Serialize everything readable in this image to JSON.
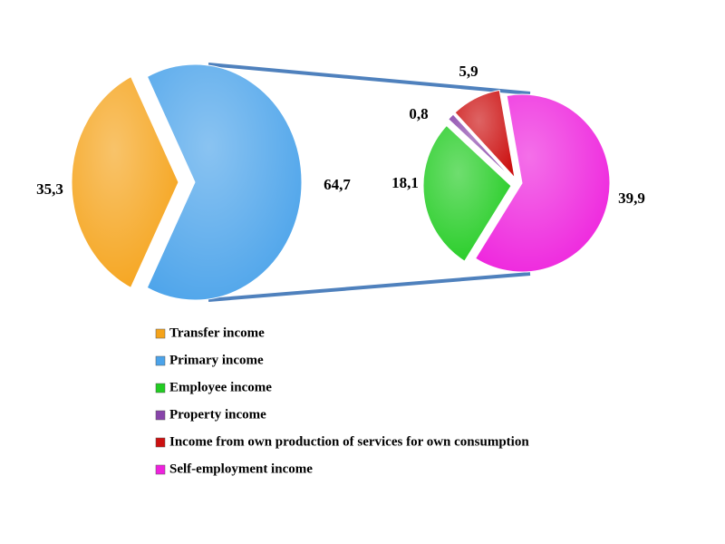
{
  "chart_data": [
    {
      "type": "pie",
      "categories": [
        "Transfer income",
        "Primary income"
      ],
      "values": [
        35.3,
        64.7
      ],
      "value_labels": [
        "35,3",
        "64,7"
      ],
      "colors": [
        "#f5a31a",
        "#4ba3ea"
      ]
    },
    {
      "type": "pie",
      "categories": [
        "Employee income",
        "Property income",
        "Income from own production of services for own consumption",
        "Self-employment income"
      ],
      "values": [
        18.1,
        0.8,
        5.9,
        39.9
      ],
      "value_labels": [
        "18,1",
        "0,8",
        "5,9",
        "39,9"
      ],
      "colors": [
        "#22cc22",
        "#8844aa",
        "#cc1111",
        "#ee22dd"
      ]
    }
  ]
}
